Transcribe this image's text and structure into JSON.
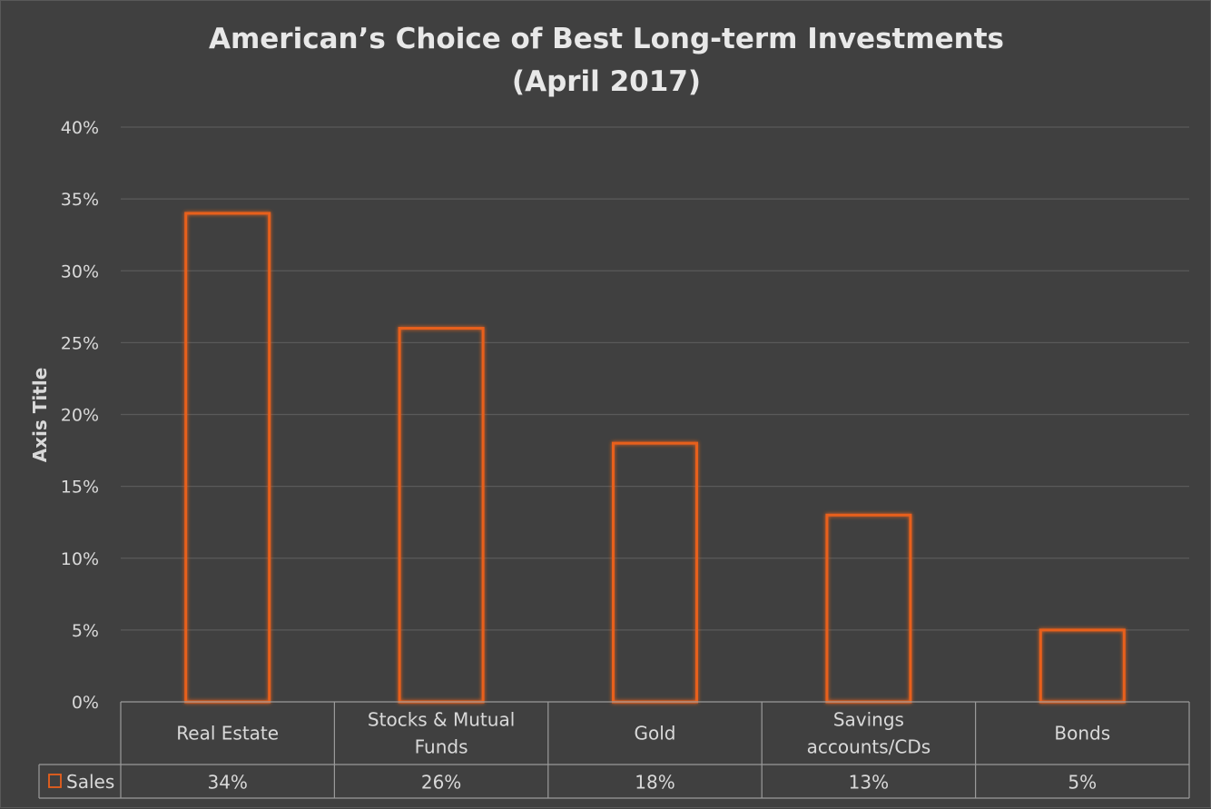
{
  "chart_data": {
    "type": "bar",
    "title": [
      "American’s Choice of Best Long-term Investments",
      "(April 2017)"
    ],
    "xlabel": "",
    "ylabel": "Axis Title",
    "categories": [
      [
        "Real Estate"
      ],
      [
        "Stocks & Mutual",
        "Funds"
      ],
      [
        "Gold"
      ],
      [
        "Savings",
        "accounts/CDs"
      ],
      [
        "Bonds"
      ]
    ],
    "series": [
      {
        "name": "Sales",
        "values": [
          0.34,
          0.26,
          0.18,
          0.13,
          0.05
        ],
        "value_labels": [
          "34%",
          "26%",
          "18%",
          "13%",
          "5%"
        ]
      }
    ],
    "ylim": [
      0,
      0.4
    ],
    "yticks": [
      0,
      0.05,
      0.1,
      0.15,
      0.2,
      0.25,
      0.3,
      0.35,
      0.4
    ],
    "ytick_labels": [
      "0%",
      "5%",
      "10%",
      "15%",
      "20%",
      "25%",
      "30%",
      "35%",
      "40%"
    ],
    "grid": true,
    "legend": "data-table",
    "colors": {
      "background": "#404040",
      "bar_outline": "#e8601c",
      "text": "#d9d9d9"
    }
  }
}
